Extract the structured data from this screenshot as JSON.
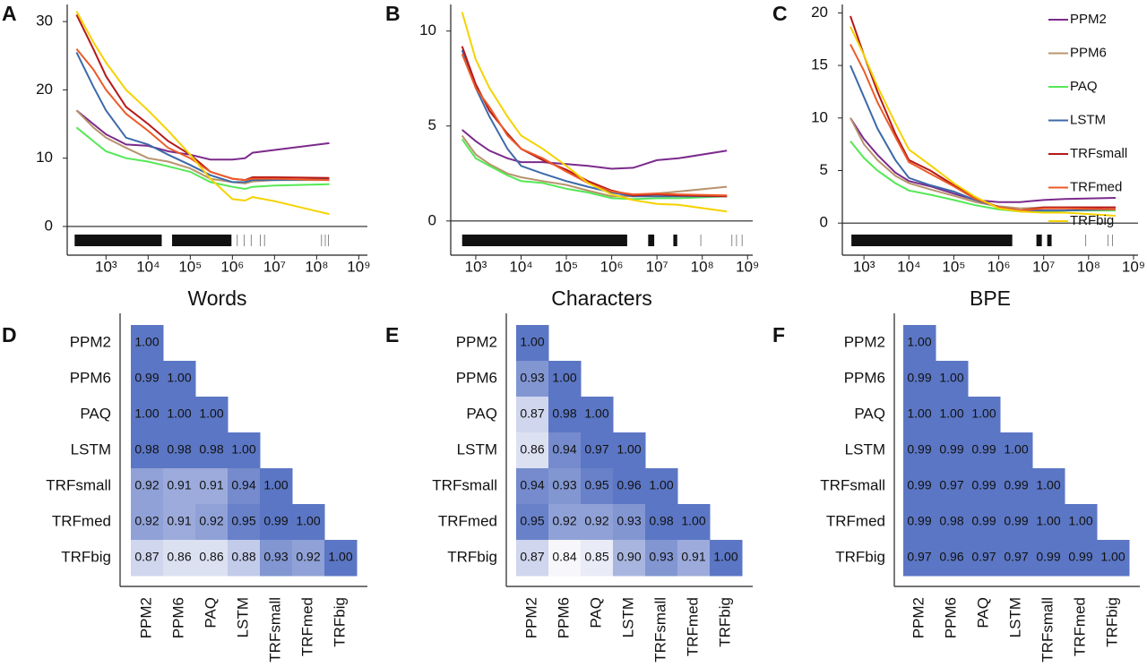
{
  "chart_data": [
    {
      "type": "line",
      "panel": "A",
      "x_label": "Words",
      "log_x": true,
      "xlim": [
        120,
        1600000000
      ],
      "ylim": [
        -4.2,
        32.5
      ],
      "xticks": [
        {
          "value": 1000,
          "label": "10³"
        },
        {
          "value": 10000,
          "label": "10⁴"
        },
        {
          "value": 100000,
          "label": "10⁵"
        },
        {
          "value": 1000000,
          "label": "10⁶"
        },
        {
          "value": 10000000,
          "label": "10⁷"
        },
        {
          "value": 100000000,
          "label": "10⁸"
        },
        {
          "value": 1000000000,
          "label": "10⁹"
        }
      ],
      "yticks": [
        0,
        10,
        20,
        30
      ],
      "reference_line": 0,
      "x": [
        200,
        500,
        1000,
        3000,
        10000,
        30000,
        100000,
        300000,
        1000000,
        2000000,
        3000000,
        10000000,
        200000000
      ],
      "series": [
        {
          "name": "PPM2",
          "color": "#7b2a8c",
          "values": [
            17,
            15,
            13.5,
            12,
            11.8,
            11,
            10.5,
            9.8,
            9.8,
            10,
            10.8,
            11.2,
            12.2
          ]
        },
        {
          "name": "PPM6",
          "color": "#b8946e",
          "values": [
            17,
            14.5,
            13,
            11.5,
            10,
            9.5,
            8.5,
            7,
            6.5,
            6.3,
            6.6,
            6.8,
            6.8
          ]
        },
        {
          "name": "PAQ",
          "color": "#55e855",
          "values": [
            14.5,
            12.5,
            11,
            10,
            9.5,
            8.8,
            8,
            6.5,
            5.8,
            5.5,
            5.8,
            6,
            6.2
          ]
        },
        {
          "name": "LSTM",
          "color": "#3d6aa8",
          "values": [
            25.5,
            20.5,
            17,
            13,
            12,
            10.5,
            9,
            7.5,
            6.5,
            6.5,
            6.8,
            6.8,
            6.9
          ]
        },
        {
          "name": "TRFsmall",
          "color": "#b51818",
          "values": [
            31,
            26,
            22,
            17.5,
            15,
            12.5,
            10.5,
            8,
            7,
            6.8,
            7.2,
            7.2,
            7.1
          ]
        },
        {
          "name": "TRFmed",
          "color": "#ec5a28",
          "values": [
            26,
            23,
            20,
            16.5,
            14,
            11.5,
            10,
            8,
            7,
            6.8,
            7,
            7,
            6.8
          ]
        },
        {
          "name": "TRFbig",
          "color": "#f5d200",
          "values": [
            31.5,
            27,
            24,
            20,
            17,
            14,
            10.5,
            7,
            4,
            3.8,
            4.3,
            3.7,
            1.8
          ]
        }
      ],
      "rug_spans": [
        [
          180,
          21000
        ],
        [
          37000,
          950000
        ]
      ],
      "rug_ticks": [
        1300000,
        1900000,
        2800000,
        4600000,
        5800000,
        130000000,
        160000000,
        190000000
      ]
    },
    {
      "type": "line",
      "panel": "B",
      "x_label": "Characters",
      "log_x": true,
      "xlim": [
        280,
        1300000000
      ],
      "ylim": [
        -1.8,
        11.4
      ],
      "xticks": [
        {
          "value": 1000,
          "label": "10³"
        },
        {
          "value": 10000,
          "label": "10⁴"
        },
        {
          "value": 100000,
          "label": "10⁵"
        },
        {
          "value": 1000000,
          "label": "10⁶"
        },
        {
          "value": 10000000,
          "label": "10⁷"
        },
        {
          "value": 100000000,
          "label": "10⁸"
        },
        {
          "value": 1000000000,
          "label": "10⁹"
        }
      ],
      "yticks": [
        0,
        5,
        10
      ],
      "reference_line": 0,
      "x": [
        500,
        1000,
        2000,
        5000,
        10000,
        30000,
        100000,
        300000,
        1000000,
        3000000,
        10000000,
        30000000,
        350000000
      ],
      "series": [
        {
          "name": "PPM2",
          "color": "#7b2a8c",
          "values": [
            4.8,
            4.2,
            3.7,
            3.3,
            3.1,
            3.1,
            3.0,
            2.9,
            2.75,
            2.8,
            3.2,
            3.3,
            3.7
          ]
        },
        {
          "name": "PPM6",
          "color": "#b8946e",
          "values": [
            4.5,
            3.5,
            3.0,
            2.5,
            2.3,
            2.1,
            1.9,
            1.6,
            1.3,
            1.3,
            1.45,
            1.55,
            1.8
          ]
        },
        {
          "name": "PAQ",
          "color": "#55e855",
          "values": [
            4.3,
            3.3,
            2.9,
            2.4,
            2.1,
            2.0,
            1.7,
            1.5,
            1.2,
            1.15,
            1.2,
            1.2,
            1.3
          ]
        },
        {
          "name": "LSTM",
          "color": "#3d6aa8",
          "values": [
            9.0,
            7.0,
            5.5,
            3.8,
            2.9,
            2.5,
            2.1,
            1.8,
            1.5,
            1.3,
            1.3,
            1.3,
            1.3
          ]
        },
        {
          "name": "TRFsmall",
          "color": "#b51818",
          "values": [
            9.2,
            7.2,
            5.8,
            4.6,
            3.8,
            3.2,
            2.7,
            2.1,
            1.6,
            1.35,
            1.4,
            1.35,
            1.3
          ]
        },
        {
          "name": "TRFmed",
          "color": "#ec5a28",
          "values": [
            8.8,
            7.0,
            6.0,
            4.5,
            3.8,
            3.3,
            2.6,
            2.0,
            1.55,
            1.4,
            1.45,
            1.4,
            1.35
          ]
        },
        {
          "name": "TRFbig",
          "color": "#f5d200",
          "values": [
            11.0,
            8.5,
            7.0,
            5.5,
            4.5,
            3.8,
            2.9,
            2.0,
            1.4,
            1.1,
            0.9,
            0.85,
            0.5
          ]
        }
      ],
      "rug_spans": [
        [
          500,
          2200000
        ],
        [
          6400000,
          8700000
        ],
        [
          23000000,
          28000000
        ]
      ],
      "rug_ticks": [
        93000000,
        450000000,
        570000000,
        760000000
      ]
    },
    {
      "type": "line",
      "panel": "C",
      "x_label": "BPE",
      "log_x": true,
      "xlim": [
        330,
        1260000000
      ],
      "ylim": [
        -3.05,
        20.8
      ],
      "xticks": [
        {
          "value": 1000,
          "label": "10³"
        },
        {
          "value": 10000,
          "label": "10⁴"
        },
        {
          "value": 100000,
          "label": "10⁵"
        },
        {
          "value": 1000000,
          "label": "10⁶"
        },
        {
          "value": 10000000,
          "label": "10⁷"
        },
        {
          "value": 100000000,
          "label": "10⁸"
        },
        {
          "value": 1000000000,
          "label": "10⁹"
        }
      ],
      "yticks": [
        0,
        5,
        10,
        15,
        20
      ],
      "reference_line": 0,
      "legend": "top-right",
      "x": [
        500,
        1000,
        2000,
        5000,
        10000,
        30000,
        100000,
        300000,
        1000000,
        3000000,
        10000000,
        30000000,
        400000000
      ],
      "series": [
        {
          "name": "PPM2",
          "color": "#7b2a8c",
          "values": [
            10,
            8,
            6.5,
            4.8,
            4,
            3.5,
            2.8,
            2.2,
            2.0,
            2.0,
            2.2,
            2.3,
            2.4
          ]
        },
        {
          "name": "PPM6",
          "color": "#b8946e",
          "values": [
            10,
            7.5,
            6,
            4.5,
            3.8,
            3.2,
            2.6,
            2.0,
            1.6,
            1.4,
            1.5,
            1.5,
            1.5
          ]
        },
        {
          "name": "PAQ",
          "color": "#55e855",
          "values": [
            7.8,
            6.2,
            5,
            3.8,
            3.1,
            2.7,
            2.2,
            1.7,
            1.3,
            1.1,
            1.1,
            1.2,
            1.2
          ]
        },
        {
          "name": "LSTM",
          "color": "#3d6aa8",
          "values": [
            15,
            12,
            9,
            6,
            4.3,
            3.6,
            3.0,
            2.2,
            1.5,
            1.2,
            1.2,
            1.2,
            1.3
          ]
        },
        {
          "name": "TRFsmall",
          "color": "#b51818",
          "values": [
            19.7,
            16,
            12.5,
            8.5,
            6.0,
            5.0,
            3.6,
            2.4,
            1.5,
            1.2,
            1.5,
            1.5,
            1.5
          ]
        },
        {
          "name": "TRFmed",
          "color": "#ec5a28",
          "values": [
            17,
            14.5,
            11.5,
            8.2,
            5.8,
            4.7,
            3.5,
            2.3,
            1.5,
            1.2,
            1.4,
            1.4,
            1.3
          ]
        },
        {
          "name": "TRFbig",
          "color": "#f5d200",
          "values": [
            18.7,
            16,
            13,
            9.5,
            7,
            5.5,
            3.8,
            2.5,
            1.4,
            1.1,
            1.0,
            1.0,
            0.7
          ]
        }
      ],
      "rug_spans": [
        [
          525,
          2000000
        ],
        [
          6900000,
          9100000
        ],
        [
          12000000,
          15000000
        ]
      ],
      "rug_ticks": [
        86000000,
        270000000,
        340000000
      ]
    },
    {
      "type": "heatmap",
      "panel": "D",
      "rows": [
        "PPM2",
        "PPM6",
        "PAQ",
        "LSTM",
        "TRFsmall",
        "TRFmed",
        "TRFbig"
      ],
      "columns": [
        "PPM2",
        "PPM6",
        "PAQ",
        "LSTM",
        "TRFsmall",
        "TRFmed",
        "TRFbig"
      ],
      "color_scale": {
        "domain": [
          0.84,
          0.96
        ],
        "colors": [
          "#f6f6fb",
          "#5b76c4"
        ]
      },
      "values": [
        [
          1.0
        ],
        [
          0.99,
          1.0
        ],
        [
          1.0,
          1.0,
          1.0
        ],
        [
          0.98,
          0.98,
          0.98,
          1.0
        ],
        [
          0.92,
          0.91,
          0.91,
          0.94,
          1.0
        ],
        [
          0.92,
          0.91,
          0.92,
          0.95,
          0.99,
          1.0
        ],
        [
          0.87,
          0.86,
          0.86,
          0.88,
          0.93,
          0.92,
          1.0
        ]
      ],
      "value_labels": [
        [
          "1.00"
        ],
        [
          "0.99",
          "1.00"
        ],
        [
          "1.00",
          "1.00",
          "1.00"
        ],
        [
          "0.98",
          "0.98",
          "0.98",
          "1.00"
        ],
        [
          "0.92",
          "0.91",
          "0.91",
          "0.94",
          "1.00"
        ],
        [
          "0.92",
          "0.91",
          "0.92",
          "0.95",
          "0.99",
          "1.00"
        ],
        [
          "0.87",
          "0.86",
          "0.86",
          "0.88",
          "0.93",
          "0.92",
          "1.00"
        ]
      ]
    },
    {
      "type": "heatmap",
      "panel": "E",
      "rows": [
        "PPM2",
        "PPM6",
        "PAQ",
        "LSTM",
        "TRFsmall",
        "TRFmed",
        "TRFbig"
      ],
      "columns": [
        "PPM2",
        "PPM6",
        "PAQ",
        "LSTM",
        "TRFsmall",
        "TRFmed",
        "TRFbig"
      ],
      "color_scale": {
        "domain": [
          0.84,
          0.96
        ],
        "colors": [
          "#f6f6fb",
          "#5b76c4"
        ]
      },
      "values": [
        [
          1.0
        ],
        [
          0.93,
          1.0
        ],
        [
          0.87,
          0.98,
          1.0
        ],
        [
          0.86,
          0.94,
          0.97,
          1.0
        ],
        [
          0.94,
          0.93,
          0.95,
          0.96,
          1.0
        ],
        [
          0.95,
          0.92,
          0.92,
          0.93,
          0.98,
          1.0
        ],
        [
          0.87,
          0.84,
          0.85,
          0.9,
          0.93,
          0.91,
          1.0
        ]
      ],
      "value_labels": [
        [
          "1.00"
        ],
        [
          "0.93",
          "1.00"
        ],
        [
          "0.87",
          "0.98",
          "1.00"
        ],
        [
          "0.86",
          "0.94",
          "0.97",
          "1.00"
        ],
        [
          "0.94",
          "0.93",
          "0.95",
          "0.96",
          "1.00"
        ],
        [
          "0.95",
          "0.92",
          "0.92",
          "0.93",
          "0.98",
          "1.00"
        ],
        [
          "0.87",
          "0.84",
          "0.85",
          "0.90",
          "0.93",
          "0.91",
          "1.00"
        ]
      ]
    },
    {
      "type": "heatmap",
      "panel": "F",
      "rows": [
        "PPM2",
        "PPM6",
        "PAQ",
        "LSTM",
        "TRFsmall",
        "TRFmed",
        "TRFbig"
      ],
      "columns": [
        "PPM2",
        "PPM6",
        "PAQ",
        "LSTM",
        "TRFsmall",
        "TRFmed",
        "TRFbig"
      ],
      "color_scale": {
        "domain": [
          0.84,
          0.96
        ],
        "colors": [
          "#f6f6fb",
          "#5b76c4"
        ]
      },
      "values": [
        [
          1.0
        ],
        [
          0.99,
          1.0
        ],
        [
          1.0,
          1.0,
          1.0
        ],
        [
          0.99,
          0.99,
          0.99,
          1.0
        ],
        [
          0.99,
          0.97,
          0.99,
          0.99,
          1.0
        ],
        [
          0.99,
          0.98,
          0.99,
          0.99,
          1.0,
          1.0
        ],
        [
          0.97,
          0.96,
          0.97,
          0.97,
          0.99,
          0.99,
          1.0
        ]
      ],
      "value_labels": [
        [
          "1.00"
        ],
        [
          "0.99",
          "1.00"
        ],
        [
          "1.00",
          "1.00",
          "1.00"
        ],
        [
          "0.99",
          "0.99",
          "0.99",
          "1.00"
        ],
        [
          "0.99",
          "0.97",
          "0.99",
          "0.99",
          "1.00"
        ],
        [
          "0.99",
          "0.98",
          "0.99",
          "0.99",
          "1.00",
          "1.00"
        ],
        [
          "0.97",
          "0.96",
          "0.97",
          "0.97",
          "0.99",
          "0.99",
          "1.00"
        ]
      ]
    }
  ]
}
